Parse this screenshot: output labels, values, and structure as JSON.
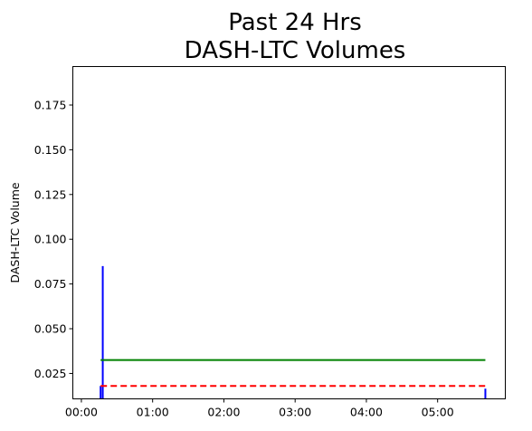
{
  "chart_data": {
    "type": "line",
    "title_lines": [
      "Past 24 Hrs",
      "DASH-LTC Volumes"
    ],
    "xlabel": "",
    "ylabel": "DASH-LTC Volume",
    "x_tick_labels": [
      "00:00",
      "01:00",
      "02:00",
      "03:00",
      "04:00",
      "05:00"
    ],
    "x_tick_hours": [
      0,
      1,
      2,
      3,
      4,
      5
    ],
    "xlim_hours": [
      -0.12,
      5.95
    ],
    "y_ticks": [
      0.025,
      0.05,
      0.075,
      0.1,
      0.125,
      0.15,
      0.175
    ],
    "y_tick_labels": [
      "0.025",
      "0.050",
      "0.075",
      "0.100",
      "0.125",
      "0.150",
      "0.175"
    ],
    "ylim": [
      0.0108,
      0.1965
    ],
    "grid": false,
    "series": [
      {
        "kind": "volume_bars",
        "color": "#0000ff",
        "bars": [
          {
            "x": 0.27,
            "y": 0.018
          },
          {
            "x": 0.3,
            "y": 0.085
          },
          {
            "x": 5.67,
            "y": 0.0165
          }
        ]
      },
      {
        "kind": "horizontal_line",
        "color": "#008000",
        "style": "solid",
        "y": 0.0325,
        "x_start": 0.27,
        "x_end": 5.67
      },
      {
        "kind": "horizontal_line",
        "color": "#ff0000",
        "style": "dashed",
        "y": 0.018,
        "x_start": 0.27,
        "x_end": 5.67
      }
    ]
  }
}
